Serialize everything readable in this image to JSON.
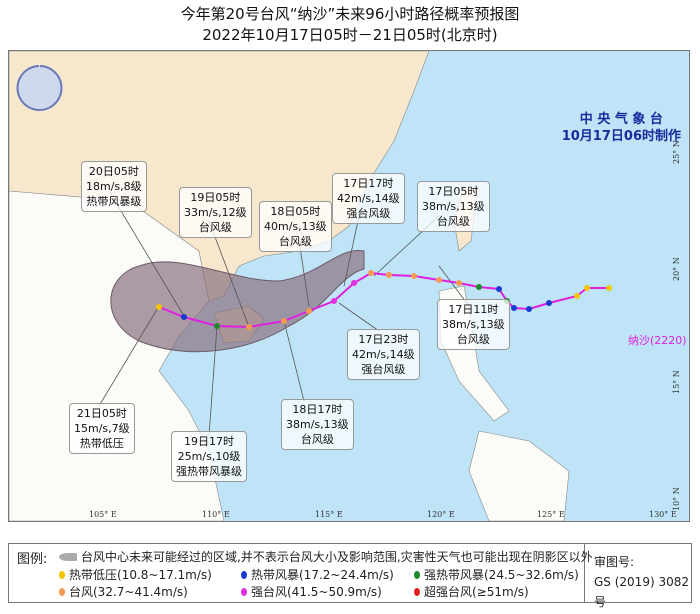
{
  "title": {
    "line1": "今年第20号台风“纳沙”未来96小时路径概率预报图",
    "line2": "2022年10月17日05时－21日05时(北京时)"
  },
  "agency": {
    "name": "中 央 气 象 台",
    "made": "10月17日06时制作"
  },
  "typhoon_label": "纳沙(2220)",
  "lat_labels": [
    "25° N",
    "20° N",
    "15° N",
    "10° N"
  ],
  "lon_labels": [
    "105° E",
    "110° E",
    "115° E",
    "120° E",
    "125° E",
    "130° E"
  ],
  "forecast_boxes": [
    {
      "time": "20日05时",
      "wind": "18m/s,8级",
      "level": "热带风暴级"
    },
    {
      "time": "19日05时",
      "wind": "33m/s,12级",
      "level": "台风级"
    },
    {
      "time": "18日05时",
      "wind": "40m/s,13级",
      "level": "台风级"
    },
    {
      "time": "17日17时",
      "wind": "42m/s,14级",
      "level": "强台风级"
    },
    {
      "time": "17日05时",
      "wind": "38m/s,13级",
      "level": "台风级"
    },
    {
      "time": "17日11时",
      "wind": "38m/s,13级",
      "level": "台风级"
    },
    {
      "time": "17日23时",
      "wind": "42m/s,14级",
      "level": "强台风级"
    },
    {
      "time": "18日17时",
      "wind": "38m/s,13级",
      "level": "台风级"
    },
    {
      "time": "19日17时",
      "wind": "25m/s,10级",
      "level": "强热带风暴级"
    },
    {
      "time": "21日05时",
      "wind": "15m/s,7级",
      "level": "热带低压"
    }
  ],
  "legend": {
    "title": "图例:",
    "cone": "台风中心未来可能经过的区域,并不表示台风大小及影响范围,灾害性天气也可能出现在阴影区以外",
    "items": [
      {
        "label": "热带低压(10.8~17.1m/s)",
        "color": "#f5c400"
      },
      {
        "label": "热带风暴(17.2~24.4m/s)",
        "color": "#1a3ad0"
      },
      {
        "label": "强热带风暴(24.5~32.6m/s)",
        "color": "#1e8a2a"
      },
      {
        "label": "台风(32.7~41.4m/s)",
        "color": "#f59a50"
      },
      {
        "label": "强台风(41.5~50.9m/s)",
        "color": "#e030e0"
      },
      {
        "label": "超强台风(≥51m/s)",
        "color": "#e02020"
      }
    ],
    "approval_label": "审图号:",
    "approval_no": "GS (2019) 3082号"
  },
  "colors": {
    "sea": "#bfe4f8",
    "china": "#f6e7cd",
    "other_land": "#fbfbf7",
    "track": "#e020e0",
    "cone": "#8a7280"
  }
}
